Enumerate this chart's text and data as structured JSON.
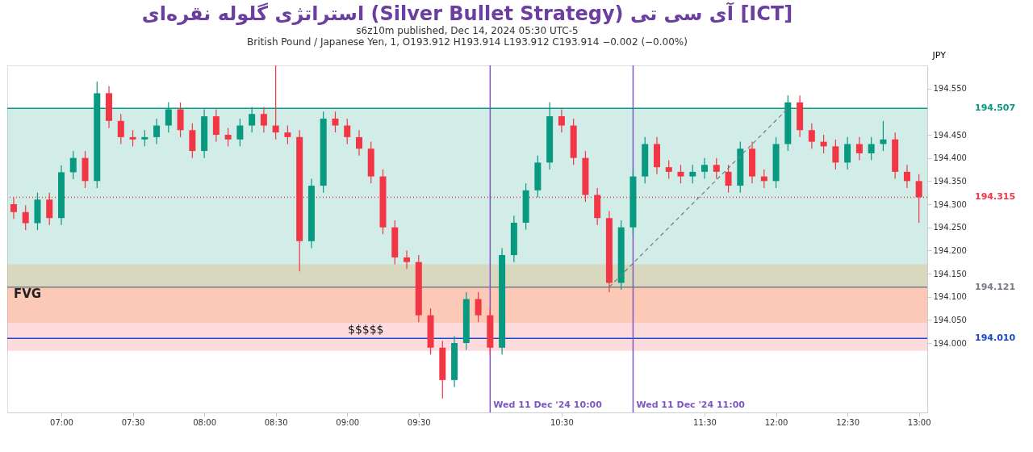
{
  "chart_data": {
    "type": "candlestick",
    "title": "استراتژی گلوله نقره‌ای (Silver Bullet Strategy) آی سی تی [ICT]",
    "subtitle": [
      "s6z10m published, Dec 14, 2024 05:30 UTC-5",
      "British Pound / Japanese Yen, 1, O193.912 H193.914 L193.912 C193.914 −0.002 (−0.00%)"
    ],
    "ylabel": "JPY",
    "x": [
      6.6667,
      6.75,
      6.8333,
      6.9167,
      7,
      7.0833,
      7.1667,
      7.25,
      7.3333,
      7.4167,
      7.5,
      7.5833,
      7.6667,
      7.75,
      7.8333,
      7.9167,
      8,
      8.0833,
      8.1667,
      8.25,
      8.3333,
      8.4167,
      8.5,
      8.5833,
      8.6667,
      8.75,
      8.8333,
      8.9167,
      9,
      9.0833,
      9.1667,
      9.25,
      9.3333,
      9.4167,
      9.5,
      9.5833,
      9.6667,
      9.75,
      9.8333,
      9.9167,
      10,
      10.0833,
      10.1667,
      10.25,
      10.3333,
      10.4167,
      10.5,
      10.5833,
      10.6667,
      10.75,
      10.8333,
      10.9167,
      11,
      11.0833,
      11.1667,
      11.25,
      11.3333,
      11.4167,
      11.5,
      11.5833,
      11.6667,
      11.75,
      11.8333,
      11.9167,
      12,
      12.0833,
      12.1667,
      12.25,
      12.3333,
      12.4167,
      12.5,
      12.5833,
      12.6667,
      12.75,
      12.8333,
      12.9167,
      13
    ],
    "ohlc": [
      [
        194.3,
        194.315,
        194.268,
        194.283
      ],
      [
        194.283,
        194.298,
        194.244,
        194.259
      ],
      [
        194.259,
        194.325,
        194.244,
        194.31
      ],
      [
        194.31,
        194.325,
        194.255,
        194.27
      ],
      [
        194.27,
        194.384,
        194.255,
        194.369
      ],
      [
        194.369,
        194.415,
        194.354,
        194.4
      ],
      [
        194.4,
        194.415,
        194.335,
        194.35
      ],
      [
        194.35,
        194.565,
        194.335,
        194.54
      ],
      [
        194.54,
        194.555,
        194.465,
        194.48
      ],
      [
        194.48,
        194.495,
        194.43,
        194.445
      ],
      [
        194.445,
        194.46,
        194.425,
        194.44
      ],
      [
        194.44,
        194.46,
        194.425,
        194.445
      ],
      [
        194.445,
        194.485,
        194.43,
        194.47
      ],
      [
        194.47,
        194.52,
        194.455,
        194.505
      ],
      [
        194.505,
        194.52,
        194.445,
        194.46
      ],
      [
        194.46,
        194.475,
        194.4,
        194.415
      ],
      [
        194.415,
        194.505,
        194.4,
        194.49
      ],
      [
        194.49,
        194.505,
        194.435,
        194.45
      ],
      [
        194.45,
        194.465,
        194.425,
        194.44
      ],
      [
        194.44,
        194.485,
        194.425,
        194.47
      ],
      [
        194.47,
        194.51,
        194.455,
        194.495
      ],
      [
        194.495,
        194.51,
        194.455,
        194.47
      ],
      [
        194.47,
        194.6,
        194.44,
        194.455
      ],
      [
        194.455,
        194.47,
        194.43,
        194.445
      ],
      [
        194.445,
        194.46,
        194.155,
        194.22
      ],
      [
        194.22,
        194.355,
        194.205,
        194.34
      ],
      [
        194.34,
        194.5,
        194.325,
        194.485
      ],
      [
        194.485,
        194.5,
        194.455,
        194.47
      ],
      [
        194.47,
        194.485,
        194.43,
        194.445
      ],
      [
        194.445,
        194.46,
        194.405,
        194.42
      ],
      [
        194.42,
        194.435,
        194.345,
        194.36
      ],
      [
        194.36,
        194.375,
        194.235,
        194.25
      ],
      [
        194.25,
        194.265,
        194.17,
        194.185
      ],
      [
        194.185,
        194.2,
        194.16,
        194.175
      ],
      [
        194.175,
        194.19,
        194.045,
        194.06
      ],
      [
        194.06,
        194.075,
        193.975,
        193.99
      ],
      [
        193.99,
        194.005,
        193.88,
        193.92
      ],
      [
        193.92,
        194.015,
        193.905,
        194.0
      ],
      [
        194.0,
        194.11,
        193.985,
        194.095
      ],
      [
        194.095,
        194.11,
        194.045,
        194.06
      ],
      [
        194.06,
        194.075,
        193.975,
        193.99
      ],
      [
        193.99,
        194.205,
        193.975,
        194.19
      ],
      [
        194.19,
        194.275,
        194.175,
        194.26
      ],
      [
        194.26,
        194.345,
        194.245,
        194.33
      ],
      [
        194.33,
        194.405,
        194.315,
        194.39
      ],
      [
        194.39,
        194.52,
        194.375,
        194.49
      ],
      [
        194.49,
        194.505,
        194.455,
        194.47
      ],
      [
        194.47,
        194.485,
        194.385,
        194.4
      ],
      [
        194.4,
        194.415,
        194.305,
        194.32
      ],
      [
        194.32,
        194.335,
        194.255,
        194.27
      ],
      [
        194.27,
        194.285,
        194.11,
        194.13
      ],
      [
        194.13,
        194.265,
        194.115,
        194.25
      ],
      [
        194.25,
        194.375,
        194.235,
        194.36
      ],
      [
        194.36,
        194.445,
        194.345,
        194.43
      ],
      [
        194.43,
        194.445,
        194.365,
        194.38
      ],
      [
        194.38,
        194.395,
        194.355,
        194.37
      ],
      [
        194.37,
        194.385,
        194.345,
        194.36
      ],
      [
        194.36,
        194.385,
        194.345,
        194.37
      ],
      [
        194.37,
        194.4,
        194.355,
        194.385
      ],
      [
        194.385,
        194.4,
        194.355,
        194.37
      ],
      [
        194.37,
        194.385,
        194.325,
        194.34
      ],
      [
        194.34,
        194.435,
        194.325,
        194.42
      ],
      [
        194.42,
        194.435,
        194.345,
        194.36
      ],
      [
        194.36,
        194.375,
        194.335,
        194.35
      ],
      [
        194.35,
        194.445,
        194.335,
        194.43
      ],
      [
        194.43,
        194.535,
        194.415,
        194.52
      ],
      [
        194.52,
        194.535,
        194.445,
        194.46
      ],
      [
        194.46,
        194.475,
        194.42,
        194.435
      ],
      [
        194.435,
        194.45,
        194.41,
        194.425
      ],
      [
        194.425,
        194.44,
        194.375,
        194.39
      ],
      [
        194.39,
        194.445,
        194.375,
        194.43
      ],
      [
        194.43,
        194.445,
        194.395,
        194.41
      ],
      [
        194.41,
        194.445,
        194.395,
        194.43
      ],
      [
        194.43,
        194.48,
        194.415,
        194.44
      ],
      [
        194.44,
        194.455,
        194.355,
        194.37
      ],
      [
        194.37,
        194.385,
        194.335,
        194.35
      ],
      [
        194.35,
        194.365,
        194.26,
        194.315
      ]
    ],
    "colors": [
      "#f23645",
      "#f23645",
      "#089981",
      "#f23645",
      "#089981",
      "#089981",
      "#f23645",
      "#089981",
      "#f23645",
      "#f23645",
      "#f23645",
      "#089981",
      "#089981",
      "#089981",
      "#f23645",
      "#f23645",
      "#089981",
      "#f23645",
      "#f23645",
      "#089981",
      "#089981",
      "#f23645",
      "#f23645",
      "#f23645",
      "#f23645",
      "#089981",
      "#089981",
      "#f23645",
      "#f23645",
      "#f23645",
      "#f23645",
      "#f23645",
      "#f23645",
      "#f23645",
      "#f23645",
      "#f23645",
      "#f23645",
      "#089981",
      "#089981",
      "#f23645",
      "#f23645",
      "#089981",
      "#089981",
      "#089981",
      "#089981",
      "#089981",
      "#f23645",
      "#f23645",
      "#f23645",
      "#f23645",
      "#f23645",
      "#089981",
      "#089981",
      "#089981",
      "#f23645",
      "#f23645",
      "#f23645",
      "#089981",
      "#089981",
      "#f23645",
      "#f23645",
      "#089981",
      "#f23645",
      "#f23645",
      "#089981",
      "#089981",
      "#f23645",
      "#f23645",
      "#f23645",
      "#f23645",
      "#089981",
      "#f23645",
      "#089981",
      "#089981",
      "#f23645",
      "#f23645",
      "#f23645"
    ],
    "series": [
      {
        "type": "line",
        "x": [
          10.8333,
          12.0833
        ],
        "values": [
          194.121,
          194.507
        ],
        "color": "#787b86",
        "line_style": "dashed"
      }
    ],
    "xlim": [
      6.65,
      13.03
    ],
    "xticks": [
      {
        "value": 7,
        "label": "07:00"
      },
      {
        "value": 7.5,
        "label": "07:30"
      },
      {
        "value": 8,
        "label": "08:00"
      },
      {
        "value": 8.5,
        "label": "08:30"
      },
      {
        "value": 9,
        "label": "09:00"
      },
      {
        "value": 9.5,
        "label": "09:30"
      },
      {
        "value": 10.5,
        "label": "10:30"
      },
      {
        "value": 11.5,
        "label": "11:30"
      },
      {
        "value": 12,
        "label": "12:00"
      },
      {
        "value": 12.5,
        "label": "12:30"
      },
      {
        "value": 13,
        "label": "13:00"
      }
    ],
    "ylim": [
      193.85,
      194.6
    ],
    "yticks": [
      {
        "value": 194,
        "label": "194.000"
      },
      {
        "value": 194.05,
        "label": "194.050"
      },
      {
        "value": 194.1,
        "label": "194.100"
      },
      {
        "value": 194.15,
        "label": "194.150"
      },
      {
        "value": 194.2,
        "label": "194.200"
      },
      {
        "value": 194.25,
        "label": "194.250"
      },
      {
        "value": 194.3,
        "label": "194.300"
      },
      {
        "value": 194.35,
        "label": "194.350"
      },
      {
        "value": 194.4,
        "label": "194.400"
      },
      {
        "value": 194.45,
        "label": "194.450"
      },
      {
        "value": 194.55,
        "label": "194.550"
      }
    ],
    "grid": false,
    "ref_lines": [
      {
        "axis": "y",
        "value": 194.507,
        "label": "194.507",
        "color": "#089981"
      },
      {
        "axis": "y",
        "value": 194.315,
        "label": "194.315",
        "color": "#f23645",
        "line_style": "dotted"
      },
      {
        "axis": "y",
        "value": 194.121,
        "label": "194.121",
        "color": "#787b86"
      },
      {
        "axis": "y",
        "value": 194.01,
        "label": "194.010",
        "color": "#1848cc"
      },
      {
        "axis": "x",
        "value": 10,
        "label": "Wed 11 Dec '24  10:00",
        "color": "#7e57c2"
      },
      {
        "axis": "x",
        "value": 11,
        "label": "Wed 11 Dec '24  11:00",
        "color": "#7e57c2"
      }
    ],
    "bands": [
      {
        "axis": "y",
        "from": 194.121,
        "to": 194.507,
        "color": "#089981"
      },
      {
        "axis": "y",
        "from": 193.983,
        "to": 194.121,
        "color": "#f23645"
      },
      {
        "axis": "y",
        "from": 194.044,
        "to": 194.17,
        "label": "FVG",
        "color": "#f57c00"
      }
    ],
    "annotations": [
      {
        "text": "$$$$$",
        "x": 9.13,
        "y": 194.01
      }
    ]
  }
}
